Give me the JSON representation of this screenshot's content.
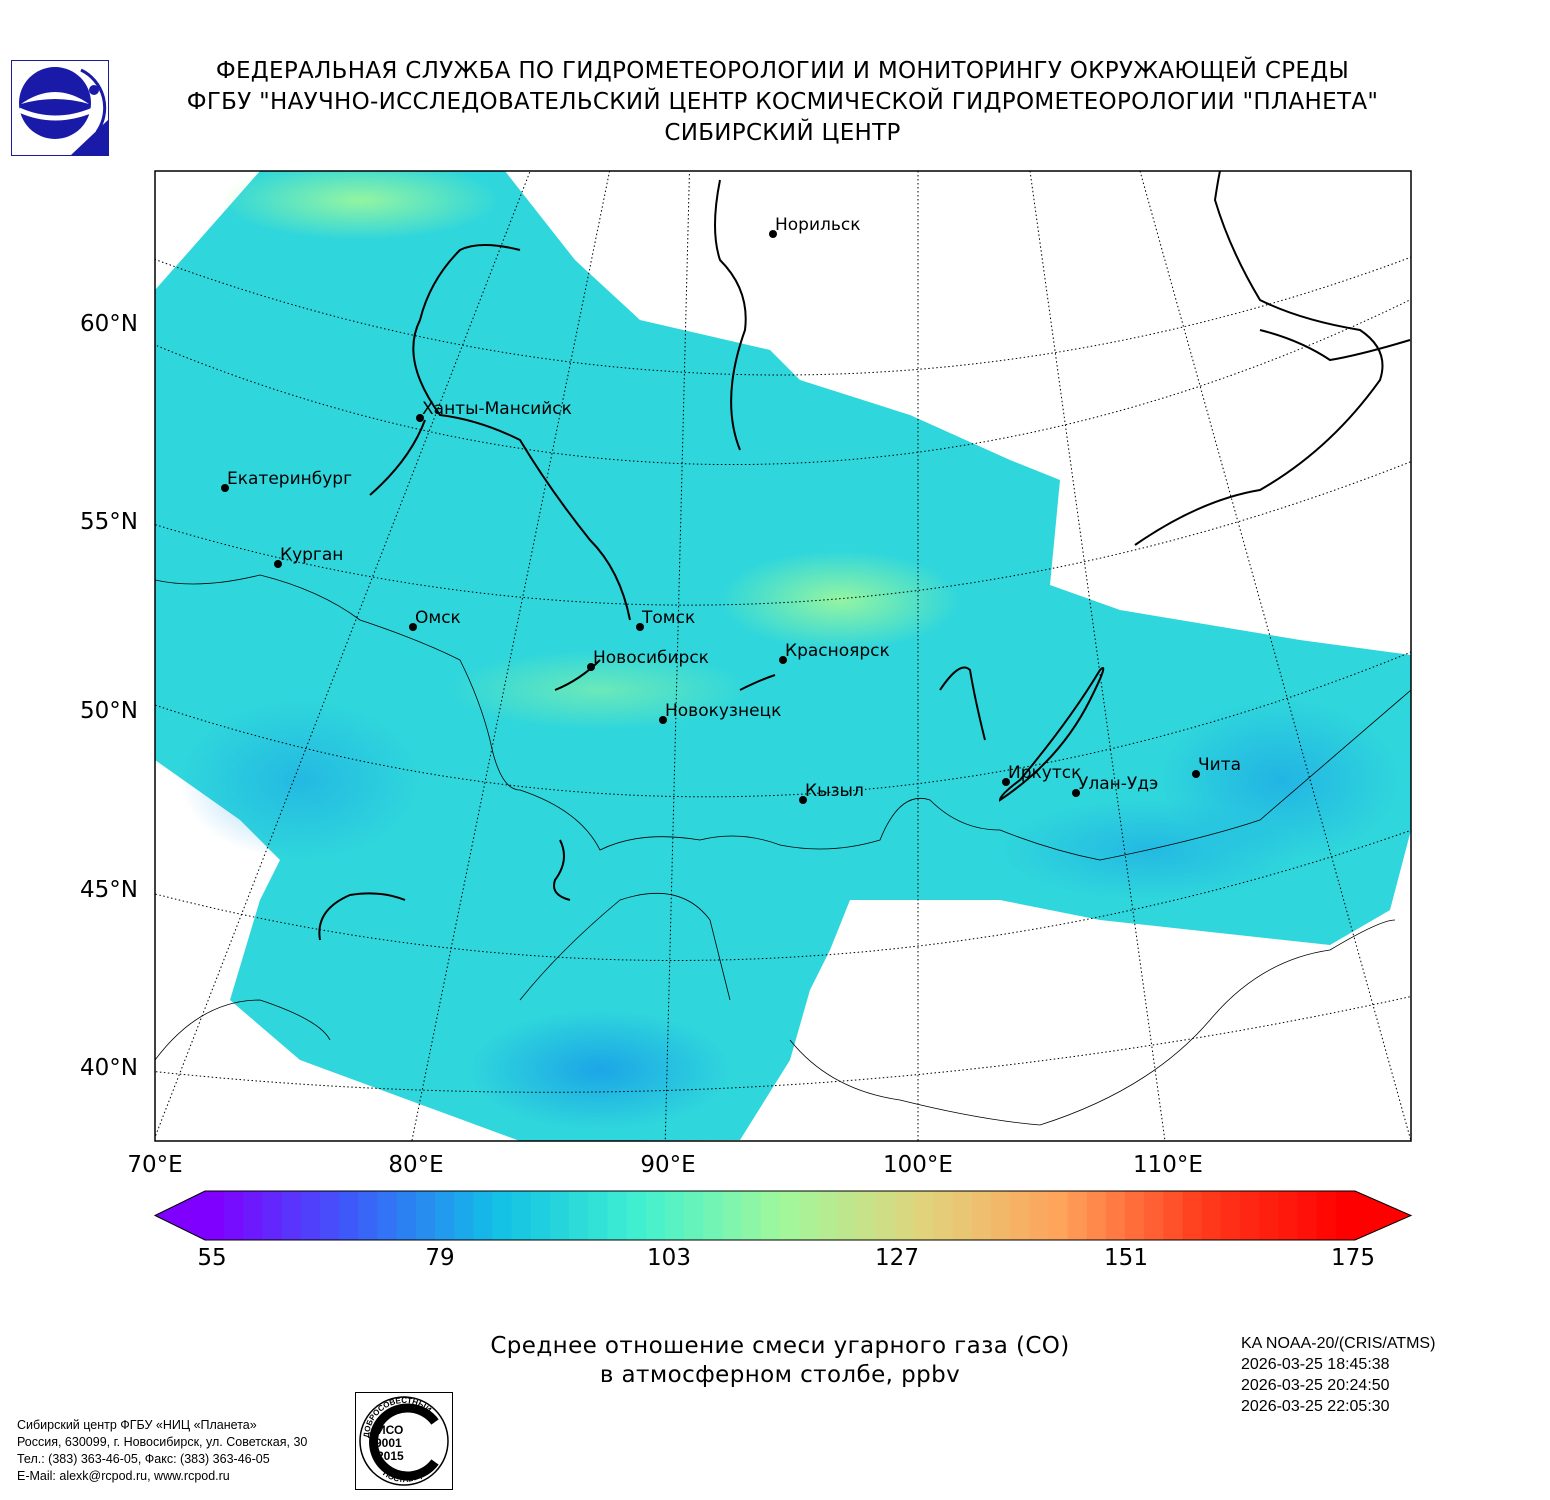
{
  "header": {
    "line1": "ФЕДЕРАЛЬНАЯ СЛУЖБА ПО ГИДРОМЕТЕОРОЛОГИИ И МОНИТОРИНГУ ОКРУЖАЮЩЕЙ СРЕДЫ",
    "line2": "ФГБУ \"НАУЧНО-ИССЛЕДОВАТЕЛЬСКИЙ ЦЕНТР КОСМИЧЕСКОЙ ГИДРОМЕТЕОРОЛОГИИ \"ПЛАНЕТА\"",
    "line3": "СИБИРСКИЙ ЦЕНТР"
  },
  "map": {
    "lat_labels": [
      "60°N",
      "55°N",
      "50°N",
      "45°N",
      "40°N"
    ],
    "lon_labels": [
      "70°E",
      "80°E",
      "90°E",
      "100°E",
      "110°E"
    ],
    "cities": [
      {
        "name": "Норильск"
      },
      {
        "name": "Ханты-Мансийск"
      },
      {
        "name": "Екатеринбург"
      },
      {
        "name": "Курган"
      },
      {
        "name": "Омск"
      },
      {
        "name": "Томск"
      },
      {
        "name": "Новосибирск"
      },
      {
        "name": "Красноярск"
      },
      {
        "name": "Новокузнецк"
      },
      {
        "name": "Иркутск"
      },
      {
        "name": "Улан-Удэ"
      },
      {
        "name": "Чита"
      },
      {
        "name": "Кызыл"
      }
    ]
  },
  "colorbar": {
    "ticks": [
      "55",
      "79",
      "103",
      "127",
      "151",
      "175"
    ],
    "min": 55,
    "max": 175,
    "colors": [
      "#7f00ff",
      "#3b5ef9",
      "#12c0e6",
      "#40f0d0",
      "#9ff89b",
      "#e0d47d",
      "#ffa25a",
      "#ff3a1c",
      "#ff0000"
    ]
  },
  "caption": {
    "line1": "Среднее отношение смеси угарного газа (CO)",
    "line2": "в атмосферном столбе, ppbv"
  },
  "satellite": {
    "name": "KA NOAA-20/(CRIS/ATMS)",
    "times": [
      "2026-03-25 18:45:38",
      "2026-03-25 20:24:50",
      "2026-03-25 22:05:30"
    ]
  },
  "footer": {
    "line1": "Сибирский центр ФГБУ «НИЦ «Планета»",
    "line2": "Россия, 630099, г. Новосибирск, ул. Советская, 30",
    "line3": "Тел.: (383) 363-46-05, Факс: (383) 363-46-05",
    "line4": "E-Mail: alexk@rcpod.ru, www.rcpod.ru"
  },
  "iso_badge": {
    "top": "ДОБРОСОВЕСТНЫЙ",
    "line1": "ИСО",
    "line2": "9001",
    "line3": "-2015",
    "bottom": "ПОСТАВЩИК"
  }
}
